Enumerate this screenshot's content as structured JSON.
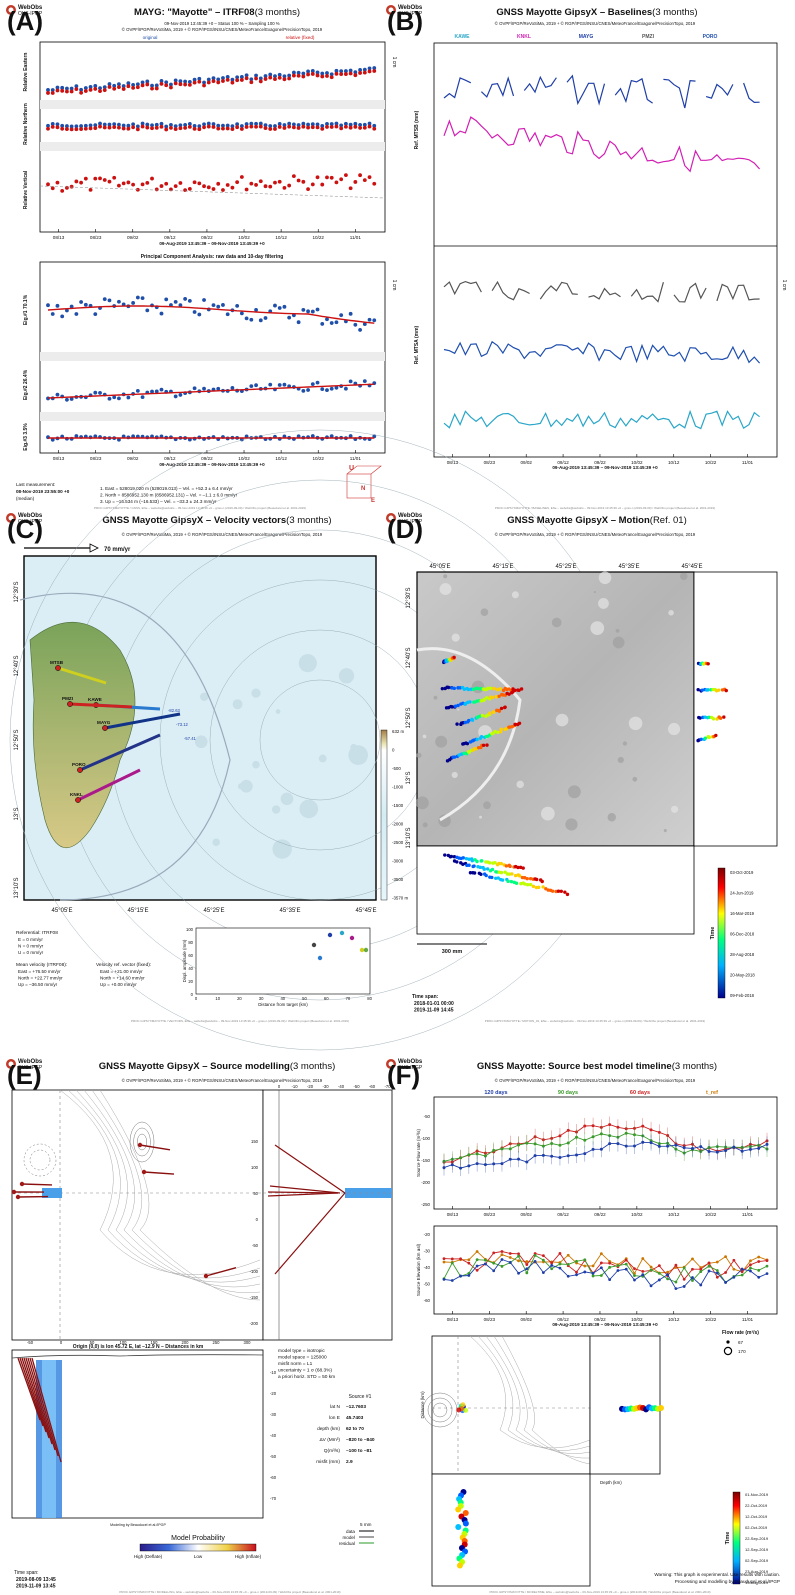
{
  "colors": {
    "original": "#1f4fa8",
    "relative": "#cc1111",
    "trend": "#cc1111",
    "kawe": "#2aa6c8",
    "knkl": "#d21fb4",
    "mayg": "#1f3fa8",
    "pmzi": "#555555",
    "poro": "#1f4fb0"
  },
  "header": {
    "logo": "WebObs",
    "logo_sub": "OVS-IPGP"
  },
  "panels": {
    "A": {
      "letter": "(A)",
      "title": "MAYG: \"Mayotte\" – ITRF08",
      "title_suffix": "(3 months)",
      "subtitle1": "09-Nov-2019 13:45:39 +0 – Status 100 % – Sampling 100 %",
      "subtitle2": "© OVPF/IPGP/ReVoSiMa, 2019 + © RGP/IPGS/INSU/CNES/MeteoFrance/Exagone/PrecisionTopo, 2019",
      "legend_original": "original",
      "legend_relative": "relative (fixed)",
      "scale": "1 cm",
      "ylabels": [
        "Relative Eastern",
        "Relative Northern",
        "Relative Vertical",
        "Eig.#1 70.1%",
        "Eig.#2 26.4%",
        "Eig.#3 3.5%"
      ],
      "xticks": [
        "08/13",
        "08/23",
        "09/02",
        "09/12",
        "09/22",
        "10/02",
        "10/12",
        "10/22",
        "11/01"
      ],
      "date_range": "09-Aug-2019 13:45:39 – 09-Nov-2019 13:45:39 +0",
      "pca_title": "Principal Component Analysis: raw data and 10-day filtering",
      "last_measurement_label": "Last measurement:",
      "last_measurement": "08-Nov-2019 23:55:00 +0",
      "last_measurement_note": "(median)",
      "stats": [
        "1. East = 528019.020 m (528019.013) – Vel. = +52.3 ± 6.4 mm/yr",
        "2. North = 8586952.130 m (8586952.131) – Vel. = –1.1 ± 6.0 mm/yr",
        "3. Up = –16.534 m (–16.533) – Vel. = –33.3 ± 24.3 mm/yr"
      ],
      "footer": "PROC.GIPSYXMAYOTTE / GNSS, ENe – webobs@webobs – 09-Nov-2019 13:45:39 +0 – gnss-n (2019-09-09) / WebObs project (Beauducel et al. 2001-2019)",
      "box_labels": [
        "U",
        "N",
        "E"
      ]
    },
    "B": {
      "letter": "(B)",
      "title": "GNSS Mayotte GipsyX – Baselines",
      "title_suffix": "(3 months)",
      "subtitle": "© OVPF/IPGP/ReVoSiMa, 2019 + © RGP/IPGS/INSU/CNES/MeteoFrance/Exagone/PrecisionTopo, 2019",
      "legend": [
        "KAWE",
        "KNKL",
        "MAYG",
        "PMZI",
        "PORO"
      ],
      "scale": "1 cm",
      "ylabels": [
        "Ref. MTSB (mm)",
        "Ref. MTSA (mm)"
      ],
      "xticks": [
        "08/13",
        "08/23",
        "09/02",
        "09/12",
        "09/22",
        "10/02",
        "10/12",
        "10/22",
        "11/01"
      ],
      "date_range": "09-Aug-2019 13:45:39 – 09-Nov-2019 13:45:39 +0",
      "footer": "PROC.GIPSYXMAYOTTE / BASELINES, ENe – webobs@webobs – 09-Nov-2019 13:45:39 +0 – gnss-n (2019-09-09) / WebObs project (Beauducel et al. 2001-2019)"
    },
    "C": {
      "letter": "(C)",
      "title": "GNSS Mayotte GipsyX – Velocity vectors",
      "title_suffix": "(3 months)",
      "subtitle": "© OVPF/IPGP/ReVoSiMa, 2019 + © RGP/IPGS/INSU/CNES/MeteoFrance/Exagone/PrecisionTopo, 2019",
      "scale_arrow": "70 mm/yr",
      "lon_ticks": [
        "45°05'E",
        "45°15'E",
        "45°25'E",
        "45°35'E",
        "45°45'E"
      ],
      "lat_ticks": [
        "12°30'S",
        "12°40'S",
        "12°50'S",
        "13°S",
        "13°10'S"
      ],
      "colorbar": [
        "632 m",
        "0",
        "-500",
        "-1000",
        "-1500",
        "-2000",
        "-2500",
        "-3000",
        "-3500",
        "-3570 m"
      ],
      "stations": [
        "MTSB",
        "KAWE",
        "PMZI",
        "MAYG",
        "PORO",
        "KNKL"
      ],
      "vector_labels": [
        "-82.63",
        "-73.12",
        "-57.41"
      ],
      "inset_ylabel": "Displ. amplitude (mm)",
      "inset_xlabel": "Distance from target (km)",
      "referential": "Referential: ITRF08",
      "ref_values": [
        "E = 0 mm/yr",
        "N = 0 mm/yr",
        "U = 0 mm/yr"
      ],
      "mean_velocity_label": "Mean velocity (ITRF08):",
      "mean_velocity": [
        "East = +76.50 mm/yr",
        "North = +22.77 mm/yr",
        "Up = –36.50 mm/yr"
      ],
      "ref_vector_label": "Velocity ref. vector (fixed):",
      "ref_vector": [
        "East = +21.00 mm/yr",
        "North = +14.60 mm/yr",
        "Up = +0.00 mm/yr"
      ],
      "footer": "PROC.GIPSYXMAYOTTE / VECTORS, ENe – webobs@webobs – 09-Nov-2019 13:45:39 +0 – gnss-n (2019-09-09) / WebObs project (Beauducel et al. 2001-2019)"
    },
    "D": {
      "letter": "(D)",
      "title": "GNSS Mayotte GipsyX – Motion",
      "title_suffix": "(Ref. 01)",
      "subtitle": "© OVPF/IPGP/ReVoSiMa, 2019 + © RGP/IPGS/INSU/CNES/MeteoFrance/Exagone/PrecisionTopo, 2019",
      "lon_ticks": [
        "45°05'E",
        "45°15'E",
        "45°25'E",
        "45°35'E",
        "45°45'E"
      ],
      "lat_ticks": [
        "12°30'S",
        "12°40'S",
        "12°50'S",
        "13°S",
        "13°10'S"
      ],
      "scale_bar": "300 mm",
      "time_label": "Time",
      "colorbar": [
        "03-Oct-2019",
        "24-Jun-2019",
        "16-Mar-2019",
        "06-Dec-2018",
        "28-Aug-2018",
        "20-May-2018",
        "09-Feb-2018"
      ],
      "time_span_label": "Time span:",
      "time_span": [
        "2018-01-01 00:00",
        "2019-11-09 14:45"
      ],
      "footer": "PROC.GIPSYXMAYOTTE / MOTION_01, ENe – webobs@webobs – 09-Nov-2019 13:45:39 +0 – gnss-n (2019-09-09) / WebObs project (Beauducel et al. 2001-2019)"
    },
    "E": {
      "letter": "(E)",
      "title": "GNSS Mayotte GipsyX – Source modelling",
      "title_suffix": "(3 months)",
      "subtitle": "© OVPF/IPGP/ReVoSiMa, 2019 + © RGP/IPGS/INSU/CNES/MeteoFrance/Exagone/PrecisionTopo, 2019",
      "right_yticks": [
        "150",
        "100",
        "50",
        "0",
        "-50",
        "-100",
        "-150",
        "-200"
      ],
      "top_xticks": [
        "0",
        "-10",
        "-20",
        "-30",
        "-40",
        "-50",
        "-60",
        "-70"
      ],
      "bottom_xticks": [
        "-50",
        "0",
        "50",
        "100",
        "150",
        "200",
        "250",
        "300"
      ],
      "lower_yticks": [
        "-10",
        "-20",
        "-30",
        "-40",
        "-50",
        "-60",
        "-70"
      ],
      "origin_label": "Origin (0,0) is lon 45.72 E, lat –12.9 N – Distances in km",
      "params": [
        "model type = isotropic",
        "model space = 125000",
        "misfit norm = L1",
        "uncertainty = 1 σ (68.3%)",
        "a priori horiz. STD = 50 km"
      ],
      "source_header": "Source #1",
      "source_rows": [
        [
          "lat N",
          "–12.7603"
        ],
        [
          "lon E",
          "45.7403"
        ],
        [
          "depth (km)",
          "62 to 70"
        ],
        [
          "ΔV (Mm³)",
          "–820 to –840"
        ],
        [
          "Q(m³/s)",
          "–100 to –81"
        ],
        [
          "misfit (mm)",
          "2.9"
        ]
      ],
      "legend_scale": "5 mm",
      "legend_items": [
        "data",
        "model",
        "residual"
      ],
      "credit": "Modeling by Beauducel et al./IPGP",
      "prob_title": "Model Probability",
      "prob_labels": [
        "High (Deflate)",
        "Low",
        "High (Inflate)"
      ],
      "time_span_label": "Time span:",
      "time_span": [
        "2019-08-09 13:45",
        "2019-11-09 13:45"
      ],
      "footer": "PROC.GIPSYXMAYOTTE / MODELLING, ENe – webobs@webobs – 09-Nov-2019 13:45:39 +0 – gnss-n (2019-09-09) / WebObs project (Beauducel et al. 2001-2019)"
    },
    "F": {
      "letter": "(F)",
      "title": "GNSS Mayotte: Source best model timeline",
      "title_suffix": "(3 months)",
      "subtitle": "© OVPF/IPGP/ReVoSiMa, 2019 + © RGP/IPGS/INSU/CNES/MeteoFrance/Exagone/PrecisionTopo, 2019",
      "windows": [
        "120 days",
        "90 days",
        "60 days",
        "t_ref"
      ],
      "ylabel1": "Source Flow rate (m³/s)",
      "ylabel2": "Source Elevation (km asl)",
      "yticks1": [
        "-50",
        "-100",
        "-150",
        "-200",
        "-250"
      ],
      "yticks2": [
        "-20",
        "-30",
        "-40",
        "-50",
        "-60"
      ],
      "xticks": [
        "08/13",
        "08/23",
        "09/02",
        "09/12",
        "09/22",
        "10/02",
        "10/12",
        "10/22",
        "11/01"
      ],
      "date_range": "09-Aug-2019 13:45:39 – 09-Nov-2019 13:45:39 +0",
      "flow_rate_title": "Flow rate (m³/s)",
      "flow_rate_items": [
        "67",
        "170"
      ],
      "depth_label": "Depth (km)",
      "distance_label": "Distance (km)",
      "time_label": "Time",
      "colorbar": [
        "01-Nov-2019",
        "22-Oct-2019",
        "12-Oct-2019",
        "02-Oct-2019",
        "22-Sep-2019",
        "12-Sep-2019",
        "02-Sep-2019",
        "23-Aug-2019",
        "13-Aug-2019"
      ],
      "warning": "Warning: This graph is experimental. Use results with caution.",
      "warning2": "Processing and modelling by Beauducel et al./IPGP",
      "footer": "PROC.GIPSYXMAYOTTE / MODELTIME, ENe – webobs@webobs – 09-Nov-2019 13:45:39 +0 – gnss-n (2019-09-09) / WebObs project (Beauducel et al. 2001-2019)"
    }
  },
  "chart_data": [
    {
      "type": "scatter",
      "title": "MAYG: \"Mayotte\" – ITRF08 (3 months)",
      "xlabel": "09-Aug-2019 13:45:39 – 09-Nov-2019 13:45:39 +0",
      "categories": [
        "08/13",
        "08/23",
        "09/02",
        "09/12",
        "09/22",
        "10/02",
        "10/12",
        "10/22",
        "11/01"
      ],
      "series": [
        {
          "name": "Relative Eastern",
          "values": [
            -6,
            -4,
            -2,
            0,
            1,
            3,
            5,
            6,
            8
          ]
        },
        {
          "name": "Relative Northern",
          "values": [
            0,
            0,
            0,
            0,
            0,
            0,
            0,
            0,
            0
          ]
        },
        {
          "name": "Relative Vertical",
          "values": [
            4,
            3,
            2,
            2,
            0,
            -1,
            -2,
            -3,
            -4
          ]
        },
        {
          "name": "Eig.#1 70.1%",
          "values": [
            3,
            4,
            3,
            1,
            0,
            1,
            2,
            -2,
            -4
          ]
        },
        {
          "name": "Eig.#2 26.4%",
          "values": [
            -3,
            -2,
            -1,
            0,
            1,
            2,
            2,
            1,
            1
          ]
        },
        {
          "name": "Eig.#3 3.5%",
          "values": [
            0,
            0,
            0,
            0,
            0,
            0,
            0,
            0,
            0
          ]
        }
      ]
    },
    {
      "type": "line",
      "title": "GNSS Mayotte GipsyX – Baselines (3 months)",
      "categories": [
        "08/13",
        "08/23",
        "09/02",
        "09/12",
        "09/22",
        "10/02",
        "10/12",
        "10/22",
        "11/01"
      ],
      "series": [
        {
          "name": "MAYG",
          "values": [
            12,
            10,
            11,
            9,
            10,
            8,
            9,
            7,
            8
          ]
        },
        {
          "name": "KNKL",
          "values": [
            6,
            4,
            3,
            2,
            0,
            -2,
            -3,
            -5,
            -6
          ]
        },
        {
          "name": "PMZI",
          "values": [
            8,
            8,
            7,
            8,
            7,
            6,
            7,
            6,
            6
          ]
        },
        {
          "name": "PORO",
          "values": [
            2,
            1,
            2,
            1,
            2,
            1,
            1,
            2,
            1
          ]
        },
        {
          "name": "KAWE",
          "values": [
            -4,
            -5,
            -3,
            -5,
            -4,
            -5,
            -4,
            -5,
            -4
          ]
        }
      ]
    },
    {
      "type": "line",
      "title": "GNSS Mayotte: Source best model timeline (3 months)",
      "categories": [
        "08/13",
        "08/23",
        "09/02",
        "09/12",
        "09/22",
        "10/02",
        "10/12",
        "10/22",
        "11/01"
      ],
      "series": [
        {
          "name": "60 days",
          "values": [
            -150,
            -120,
            -100,
            -80,
            -60,
            -70,
            -110,
            -120,
            -100
          ]
        },
        {
          "name": "90 days",
          "values": [
            -140,
            -130,
            -110,
            -100,
            -80,
            -90,
            -120,
            -110,
            -110
          ]
        },
        {
          "name": "120 days",
          "values": [
            -160,
            -150,
            -140,
            -130,
            -110,
            -100,
            -110,
            -120,
            -110
          ]
        }
      ],
      "ylim": [
        -250,
        0
      ]
    }
  ]
}
